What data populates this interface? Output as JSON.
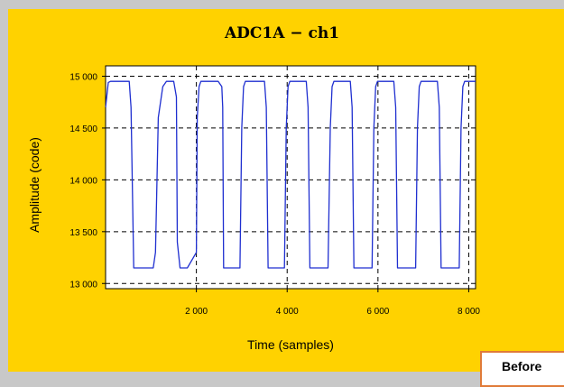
{
  "chart_data": {
    "type": "line",
    "title": "ADC1A − ch1",
    "xlabel": "Time (samples)",
    "ylabel": "Amplitude (code)",
    "xlim": [
      0,
      8150
    ],
    "ylim": [
      12950,
      15100
    ],
    "xticks": [
      2000,
      4000,
      6000,
      8000
    ],
    "xtick_labels": [
      "2 000",
      "4 000",
      "6 000",
      "8 000"
    ],
    "yticks": [
      13000,
      13500,
      14000,
      14500,
      15000
    ],
    "ytick_labels": [
      "13 000",
      "13 500",
      "14 000",
      "14 500",
      "15 000"
    ],
    "grid": "dashed",
    "series": [
      {
        "color": "#1f2fd0",
        "x": [
          0,
          60,
          110,
          520,
          560,
          620,
          1050,
          1100,
          1160,
          1260,
          1340,
          1420,
          1500,
          1560,
          1580,
          1640,
          1680,
          1720,
          1760,
          1800,
          2000,
          2020,
          2060,
          2100,
          2160,
          2200,
          2300,
          2480,
          2560,
          2580,
          2600,
          2660,
          2780,
          2960,
          3000,
          3040,
          3080,
          3140,
          3260,
          3440,
          3500,
          3540,
          3580,
          3640,
          3760,
          3940,
          3980,
          4020,
          4060,
          4120,
          4240,
          4420,
          4460,
          4500,
          4540,
          4600,
          4720,
          4900,
          4950,
          4990,
          5030,
          5090,
          5210,
          5390,
          5430,
          5470,
          5510,
          5570,
          5690,
          5870,
          5910,
          5950,
          5990,
          6050,
          6170,
          6350,
          6390,
          6430,
          6470,
          6530,
          6650,
          6830,
          6870,
          6910,
          6950,
          7010,
          7130,
          7310,
          7350,
          7390,
          7430,
          7490,
          7610,
          7790,
          7830,
          7870,
          7910,
          7970,
          8000,
          8050,
          8100,
          8150
        ],
        "values": [
          14700,
          14940,
          14950,
          14950,
          14700,
          13150,
          13150,
          13300,
          14600,
          14900,
          14950,
          14950,
          14950,
          14800,
          13400,
          13150,
          13150,
          13150,
          13150,
          13150,
          13300,
          14600,
          14900,
          14950,
          14950,
          14950,
          14950,
          14950,
          14900,
          14700,
          13150,
          13150,
          13150,
          13150,
          14500,
          14900,
          14950,
          14950,
          14950,
          14950,
          14950,
          14700,
          13150,
          13150,
          13150,
          13150,
          14500,
          14900,
          14950,
          14950,
          14950,
          14950,
          14700,
          13150,
          13150,
          13150,
          13150,
          13150,
          14500,
          14900,
          14950,
          14950,
          14950,
          14950,
          14700,
          13150,
          13150,
          13150,
          13150,
          13150,
          14500,
          14900,
          14950,
          14950,
          14950,
          14950,
          14700,
          13150,
          13150,
          13150,
          13150,
          13150,
          14500,
          14900,
          14950,
          14950,
          14950,
          14950,
          14700,
          13150,
          13150,
          13150,
          13150,
          13150,
          14500,
          14900,
          14950,
          14950,
          14950,
          14950,
          14950,
          14950
        ]
      }
    ]
  },
  "note": {
    "label": "Before"
  }
}
